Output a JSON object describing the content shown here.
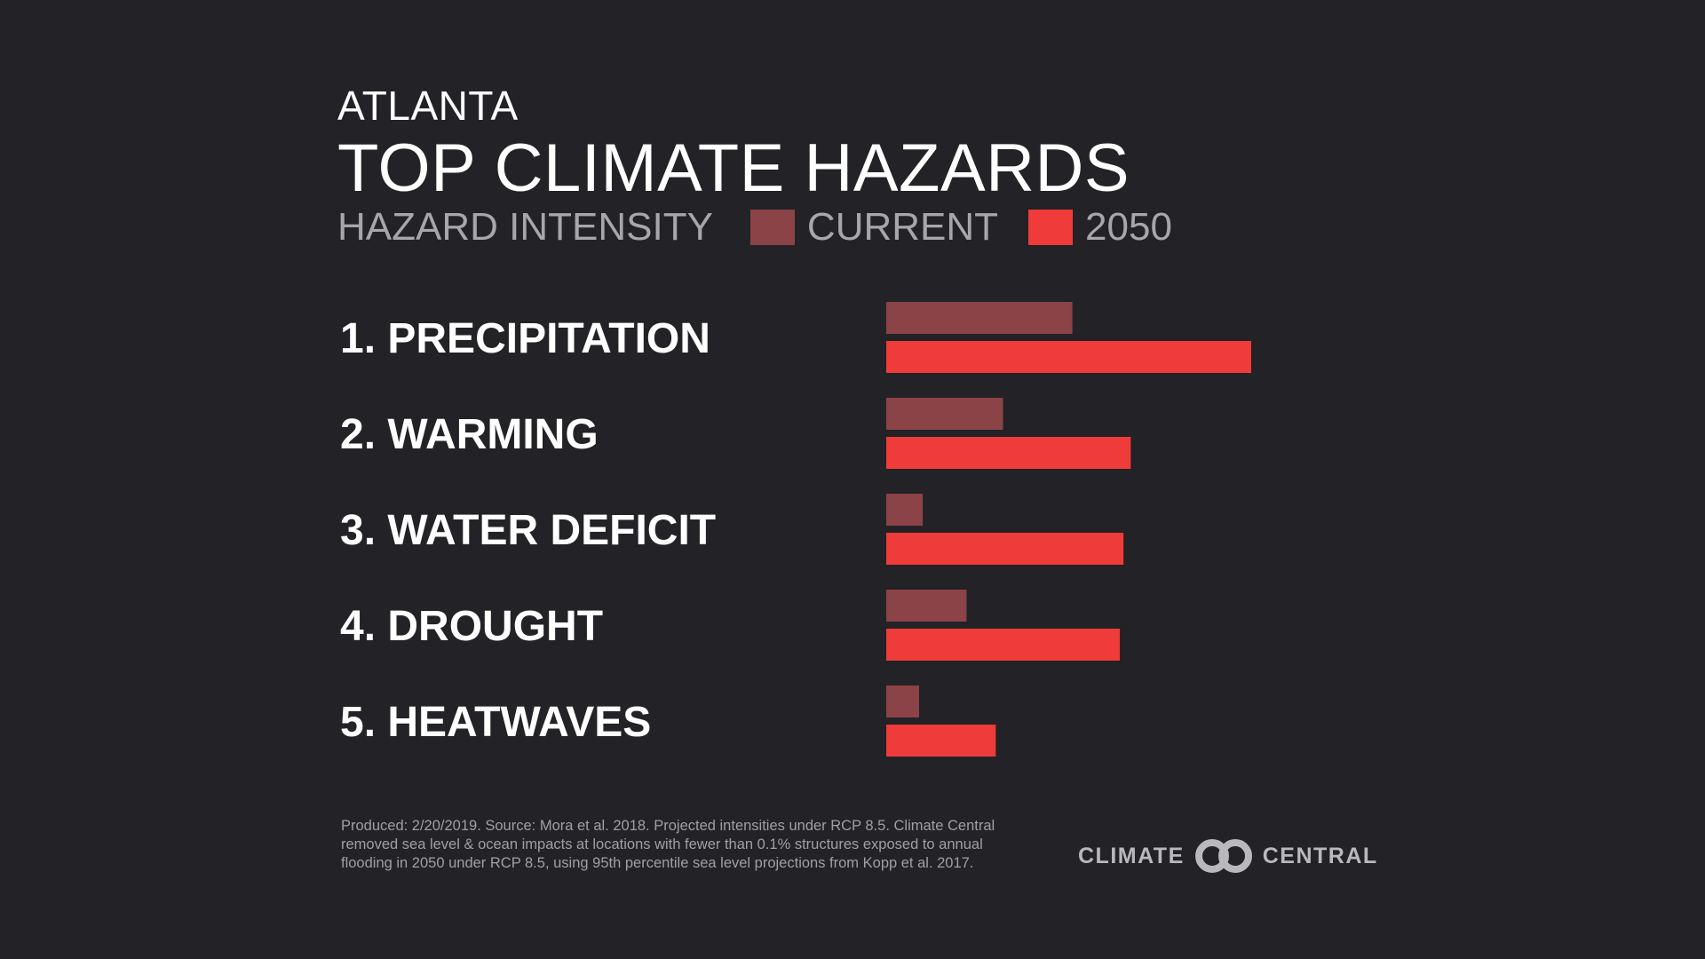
{
  "header": {
    "city": "ATLANTA",
    "title": "TOP CLIMATE HAZARDS"
  },
  "legend": {
    "label": "HAZARD INTENSITY",
    "current": "CURRENT",
    "future": "2050"
  },
  "colors": {
    "background": "#232226",
    "current": "#8b4347",
    "future": "#ef3b39"
  },
  "chart_data": {
    "type": "bar",
    "orientation": "horizontal",
    "title": "TOP CLIMATE HAZARDS",
    "categories": [
      "1. PRECIPITATION",
      "2. WARMING",
      "3. WATER DEFICIT",
      "4. DROUGHT",
      "5. HEATWAVES"
    ],
    "series": [
      {
        "name": "CURRENT",
        "values": [
          0.51,
          0.32,
          0.1,
          0.22,
          0.09
        ],
        "color": "#8b4347"
      },
      {
        "name": "2050",
        "values": [
          1.0,
          0.67,
          0.65,
          0.64,
          0.3
        ],
        "color": "#ef3b39"
      }
    ],
    "value_axis": {
      "range": [
        0,
        1
      ],
      "shown": false
    },
    "grid": false,
    "legend_position": "top"
  },
  "footnote": {
    "line1": "Produced: 2/20/2019. Source: Mora et al. 2018. Projected intensities under RCP 8.5. Climate Central",
    "line2": "removed sea level & ocean impacts at locations with fewer than 0.1% structures exposed to annual",
    "line3": "flooding in 2050 under RCP 8.5, using 95th percentile sea level projections from  Kopp et al. 2017."
  },
  "logo": {
    "left_text": "CLIMATE",
    "right_text": "CENTRAL",
    "icon": "climate-central-rings-icon"
  }
}
